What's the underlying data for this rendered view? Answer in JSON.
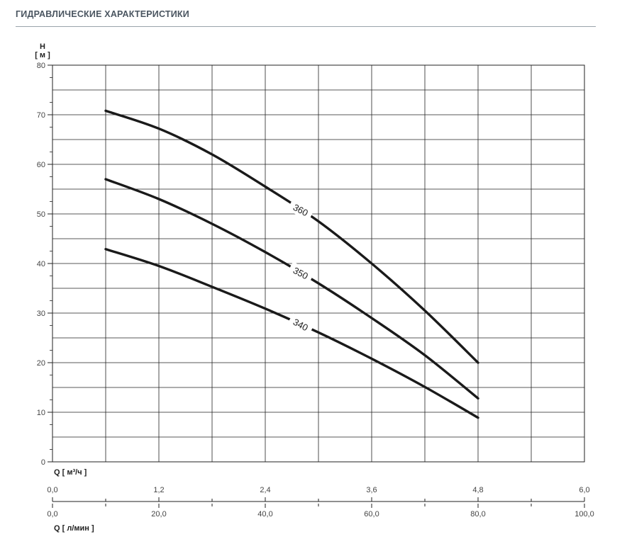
{
  "header": {
    "title": "ГИДРАВЛИЧЕСКИЕ ХАРАКТЕРИСТИКИ"
  },
  "chart_data": {
    "type": "line",
    "title": "",
    "ylabel_line1": "H",
    "ylabel_line2": "[ м ]",
    "xlabel_primary": "Q [ м³/ч ]",
    "xlabel_secondary": "Q [ л/мин ]",
    "ylim": [
      0,
      80
    ],
    "xlim": [
      0,
      6
    ],
    "y_ticks": [
      "0",
      "10",
      "20",
      "30",
      "40",
      "50",
      "60",
      "70",
      "80"
    ],
    "x_ticks_primary": [
      "0,0",
      "1,2",
      "2,4",
      "3,6",
      "4,8",
      "6,0"
    ],
    "x_ticks_secondary": [
      "0,0",
      "20,0",
      "40,0",
      "60,0",
      "80,0",
      "100,0"
    ],
    "grid": true,
    "series": [
      {
        "name": "360",
        "x": [
          0.6,
          1.2,
          1.8,
          2.4,
          3.0,
          3.6,
          4.2,
          4.8
        ],
        "y": [
          70.8,
          67.2,
          62.0,
          55.5,
          48.5,
          40.0,
          30.5,
          20.0
        ]
      },
      {
        "name": "350",
        "x": [
          0.6,
          1.2,
          1.8,
          2.4,
          3.0,
          3.6,
          4.2,
          4.8
        ],
        "y": [
          57.0,
          53.0,
          48.0,
          42.3,
          36.0,
          29.0,
          21.5,
          12.8
        ]
      },
      {
        "name": "340",
        "x": [
          0.6,
          1.2,
          1.8,
          2.4,
          3.0,
          3.6,
          4.2,
          4.8
        ],
        "y": [
          42.9,
          39.5,
          35.3,
          30.9,
          26.1,
          20.8,
          15.1,
          8.9
        ]
      }
    ]
  }
}
